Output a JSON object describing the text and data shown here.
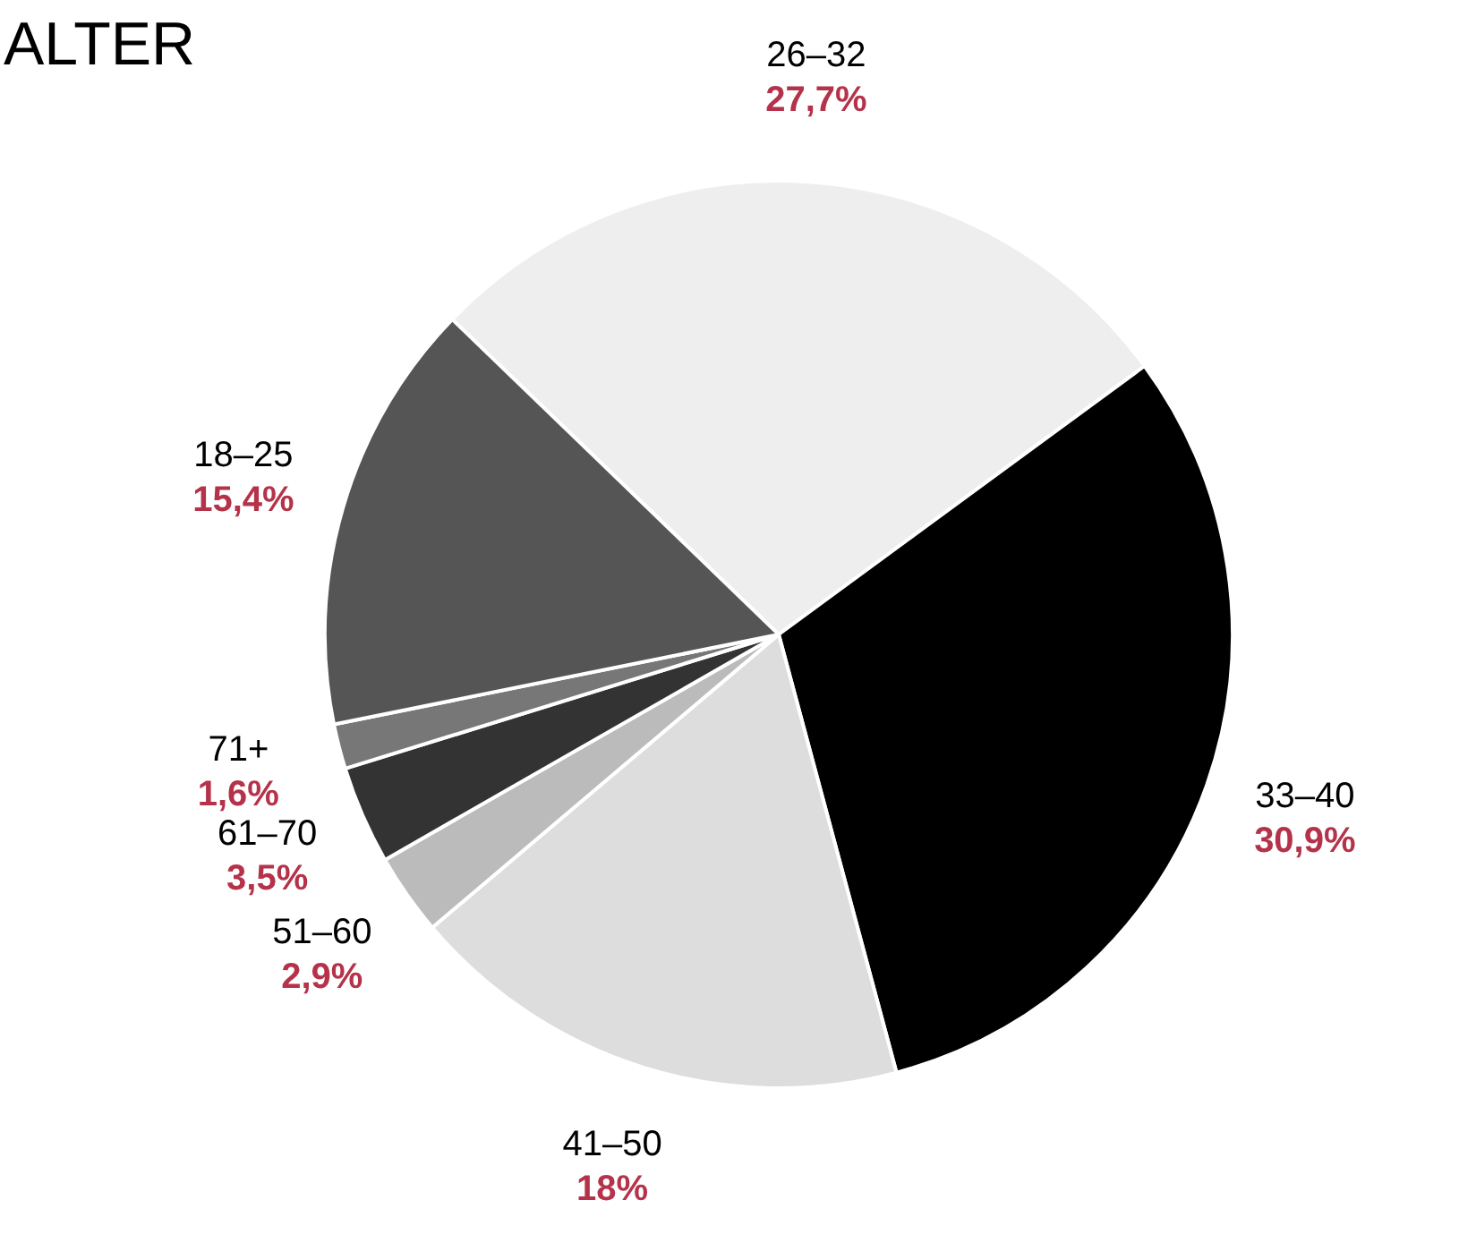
{
  "chart_data": {
    "type": "pie",
    "title": "ALTER",
    "categories": [
      "26–32",
      "33–40",
      "41–50",
      "51–60",
      "61–70",
      "71+",
      "18–25"
    ],
    "values": [
      27.7,
      30.9,
      18,
      2.9,
      3.5,
      1.6,
      15.4
    ],
    "value_labels": [
      "27,7%",
      "30,9%",
      "18%",
      "2,9%",
      "3,5%",
      "1,6%",
      "15,4%"
    ],
    "colors": [
      "#eeeeee",
      "#000000",
      "#dddddd",
      "#bbbbbb",
      "#333333",
      "#777777",
      "#555555"
    ]
  }
}
